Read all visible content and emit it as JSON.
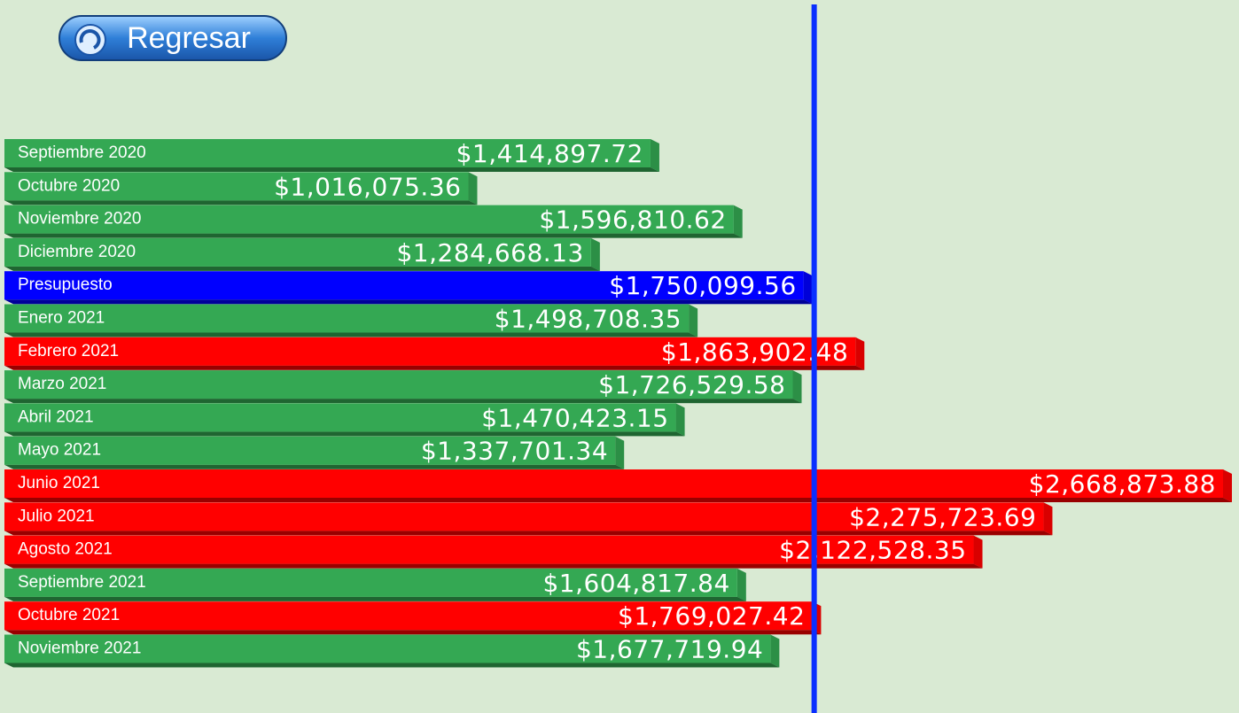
{
  "button_label": "Regresar",
  "chart_data": {
    "type": "bar",
    "orientation": "horizontal",
    "categories": [
      "Septiembre 2020",
      "Octubre 2020",
      "Noviembre 2020",
      "Diciembre 2020",
      "Presupuesto",
      "Enero 2021",
      "Febrero 2021",
      "Marzo 2021",
      "Abril 2021",
      "Mayo 2021",
      "Junio 2021",
      "Julio 2021",
      "Agosto 2021",
      "Septiembre 2021",
      "Octubre 2021",
      "Noviembre 2021"
    ],
    "values": [
      1414897.72,
      1016075.36,
      1596810.62,
      1284668.13,
      1750099.56,
      1498708.35,
      1863902.48,
      1726529.58,
      1470423.15,
      1337701.34,
      2668873.88,
      2275723.69,
      2122528.35,
      1604817.84,
      1769027.42,
      1677719.94
    ],
    "value_labels": [
      "$1,414,897.72",
      "$1,016,075.36",
      "$1,596,810.62",
      "$1,284,668.13",
      "$1,750,099.56",
      "$1,498,708.35",
      "$1,863,902.48",
      "$1,726,529.58",
      "$1,470,423.15",
      "$1,337,701.34",
      "$2,668,873.88",
      "$2,275,723.69",
      "$2,122,528.35",
      "$1,604,817.84",
      "$1,769,027.42",
      "$1,677,719.94"
    ],
    "colors": [
      "#34a853",
      "#34a853",
      "#34a853",
      "#34a853",
      "#0000ff",
      "#34a853",
      "#ff0000",
      "#34a853",
      "#34a853",
      "#34a853",
      "#ff0000",
      "#ff0000",
      "#ff0000",
      "#34a853",
      "#ff0000",
      "#34a853"
    ],
    "reference_line_color": "#0a2fff"
  }
}
